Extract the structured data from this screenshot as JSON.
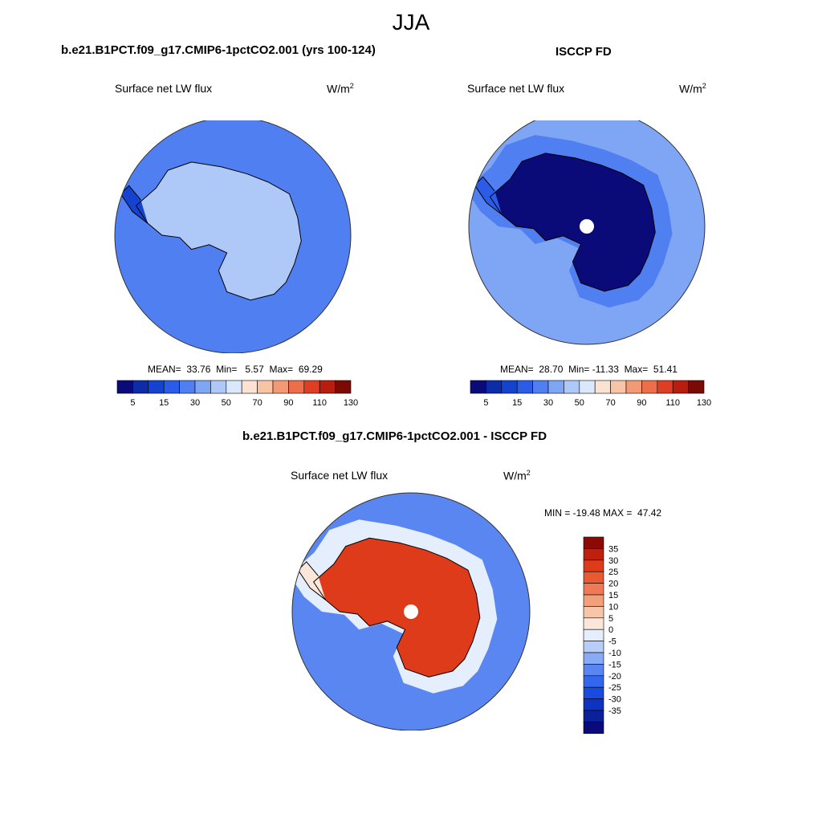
{
  "figure": {
    "season": "JJA"
  },
  "colors": {
    "model_obs_levels": [
      "#0a0a78",
      "#0c2ca8",
      "#1443cf",
      "#2a5ce8",
      "#4f7ff0",
      "#7fa5f5",
      "#aec8f7",
      "#dbe8fb",
      "#fbe2d2",
      "#f8c4a6",
      "#f29a76",
      "#ec6e4a",
      "#dd3e24",
      "#b81e10",
      "#7a0a05"
    ],
    "diff_levels": [
      "#0a0a78",
      "#0a2199",
      "#0e33c0",
      "#1a4be0",
      "#3366ee",
      "#5a86f2",
      "#89aaf6",
      "#b9cdfa",
      "#e4eefc",
      "#fbe7d9",
      "#f7c6a9",
      "#f2a07c",
      "#ef7a55",
      "#e95a33",
      "#de3b1a",
      "#bd200c",
      "#8c0a05"
    ],
    "land_outline": "#000000",
    "circle_edge": "#333333"
  },
  "chart_data": [
    {
      "type": "heatmap",
      "id": "model",
      "case_title": "b.e21.B1PCT.f09_g17.CMIP6-1pctCO2.001 (yrs 100-124)",
      "variable": "Surface net LW flux",
      "units_base": "W/m",
      "units_exp": "2",
      "mean_label": "MEAN=",
      "mean": "33.76",
      "min_label": "Min=",
      "min": "5.57",
      "max_label": "Max=",
      "max": "69.29",
      "levels": [
        5,
        10,
        15,
        20,
        30,
        40,
        50,
        60,
        70,
        80,
        90,
        100,
        110,
        120,
        130
      ],
      "tick_labels": [
        "5",
        "15",
        "30",
        "50",
        "70",
        "90",
        "110",
        "130"
      ],
      "field_values": {
        "open_ocean": 30,
        "sea_ice_ring": 25,
        "antarctic_interior": 45,
        "coastal_peninsula": 15
      }
    },
    {
      "type": "heatmap",
      "id": "obs",
      "case_title": "ISCCP FD",
      "variable": "Surface net LW flux",
      "units_base": "W/m",
      "units_exp": "2",
      "mean_label": "MEAN=",
      "mean": "28.70",
      "min_label": "Min=",
      "min": "-11.33",
      "max_label": "Max=",
      "max": "51.41",
      "levels": [
        5,
        10,
        15,
        20,
        30,
        40,
        50,
        60,
        70,
        80,
        90,
        100,
        110,
        120,
        130
      ],
      "tick_labels": [
        "5",
        "15",
        "30",
        "50",
        "70",
        "90",
        "110",
        "130"
      ],
      "field_values": {
        "open_ocean": 40,
        "sea_ice_ring": 30,
        "antarctic_interior": 5,
        "coastal_peninsula": 20
      }
    },
    {
      "type": "heatmap",
      "id": "diff",
      "case_title": "b.e21.B1PCT.f09_g17.CMIP6-1pctCO2.001 - ISCCP FD",
      "variable": "Surface net LW flux",
      "units_base": "W/m",
      "units_exp": "2",
      "minmax_text": "MIN = -19.48 MAX =  47.42",
      "min": "-19.48",
      "max": "47.42",
      "levels": [
        35,
        30,
        25,
        20,
        15,
        10,
        5,
        0,
        -5,
        -10,
        -15,
        -20,
        -25,
        -30,
        -35
      ],
      "tick_labels": [
        "35",
        "30",
        "25",
        "20",
        "15",
        "10",
        "5",
        "0",
        "-5",
        "-10",
        "-15",
        "-20",
        "-25",
        "-30",
        "-35"
      ],
      "field_values": {
        "open_ocean": -12,
        "sea_ice_ring": 4,
        "antarctic_interior": 35,
        "coastal_peninsula": 8
      }
    }
  ]
}
